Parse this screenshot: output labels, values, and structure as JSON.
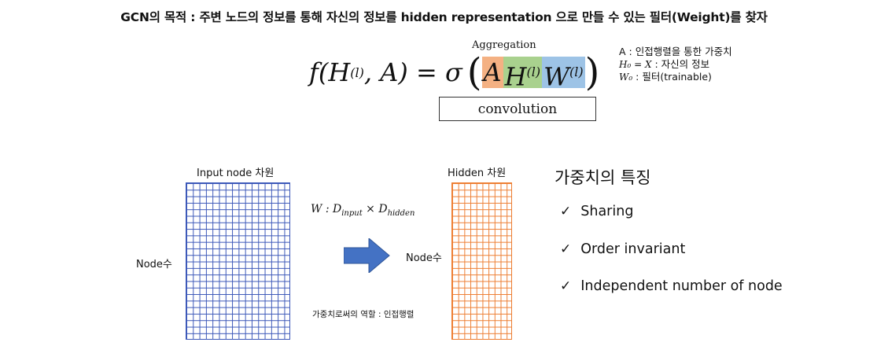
{
  "headline": "GCN의 목적 : 주변 노드의 정보를 통해 자신의 정보를 hidden representation 으로 만들 수 있는 필터(Weight)를 찾자",
  "formula": {
    "lhs": "f(H",
    "layer_sup": "(l)",
    "lhs_rest": ", A) = σ",
    "term_a": "A",
    "term_h": "H",
    "term_w": "W",
    "aggregation_label": "Aggregation",
    "convolution_label": "convolution"
  },
  "notes": {
    "line1": "A : 인접행렬을 통한 가중치",
    "line2_math": "H₀ = X",
    "line2_text": " : 자신의 정보",
    "line3_math": "W₀",
    "line3_text": " : 필터(trainable)"
  },
  "diagram": {
    "input_label": "Input node 차원",
    "hidden_label": "Hidden 차원",
    "node_label_left": "Node수",
    "node_label_right": "Node수",
    "weight_eq_main": "W : D",
    "weight_eq_sub1": "input",
    "weight_eq_times": " × D",
    "weight_eq_sub2": "hidden",
    "adjacency_note": "가중치로써의 역할 : 인접행렬",
    "colors": {
      "input_grid": "#3b57b8",
      "hidden_grid": "#ed7d31",
      "arrow": "#4472c4"
    }
  },
  "features": {
    "title": "가중치의 특징",
    "items": [
      "Sharing",
      "Order invariant",
      "Independent number of node"
    ],
    "check_icon": "✓"
  }
}
